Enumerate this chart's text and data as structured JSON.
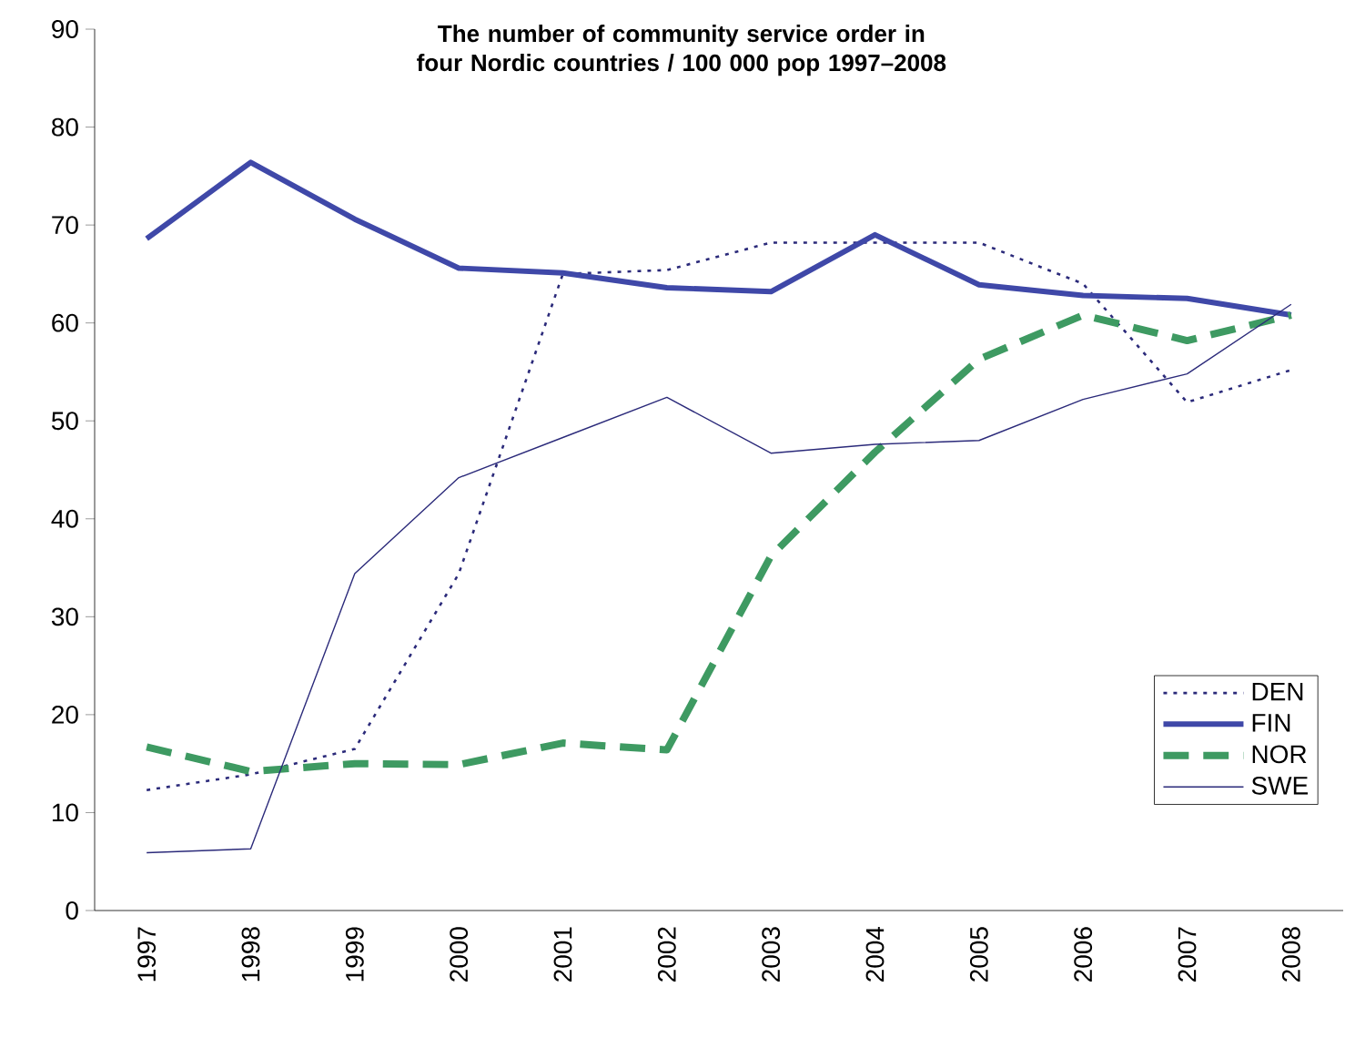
{
  "chart_data": {
    "type": "line",
    "title": "The number of community service order in four Nordic countries / 100 000 pop 1997–2008",
    "categories": [
      "1997",
      "1998",
      "1999",
      "2000",
      "2001",
      "2002",
      "2003",
      "2004",
      "2005",
      "2006",
      "2007",
      "2008"
    ],
    "series": [
      {
        "name": "DEN",
        "color": "#2b2a7a",
        "line_style": "dotted",
        "values": [
          12.3,
          13.9,
          16.5,
          34.4,
          65,
          65.4,
          68.2,
          68.2,
          68.2,
          64,
          51.9,
          55.2
        ]
      },
      {
        "name": "FIN",
        "color": "#3f48a8",
        "line_style": "solid",
        "values": [
          68.6,
          76.4,
          70.6,
          65.6,
          65.1,
          63.6,
          63.2,
          69,
          63.9,
          62.8,
          62.5,
          60.8
        ]
      },
      {
        "name": "NOR",
        "color": "#3e9a62",
        "line_style": "dashed",
        "values": [
          16.7,
          14.2,
          15,
          14.9,
          17.1,
          16.4,
          36.2,
          46.8,
          56.3,
          60.8,
          58.2,
          60.8
        ]
      },
      {
        "name": "SWE",
        "color": "#2b2a7a",
        "line_style": "solid",
        "values": [
          5.9,
          6.3,
          34.4,
          44.2,
          48.3,
          52.4,
          46.7,
          47.6,
          48,
          52.2,
          54.8,
          61.9
        ]
      }
    ],
    "ylim": [
      0,
      90
    ],
    "yticks": [
      0,
      10,
      20,
      30,
      40,
      50,
      60,
      70,
      80,
      90
    ],
    "legend": "right",
    "grid": false,
    "marker": "none"
  }
}
